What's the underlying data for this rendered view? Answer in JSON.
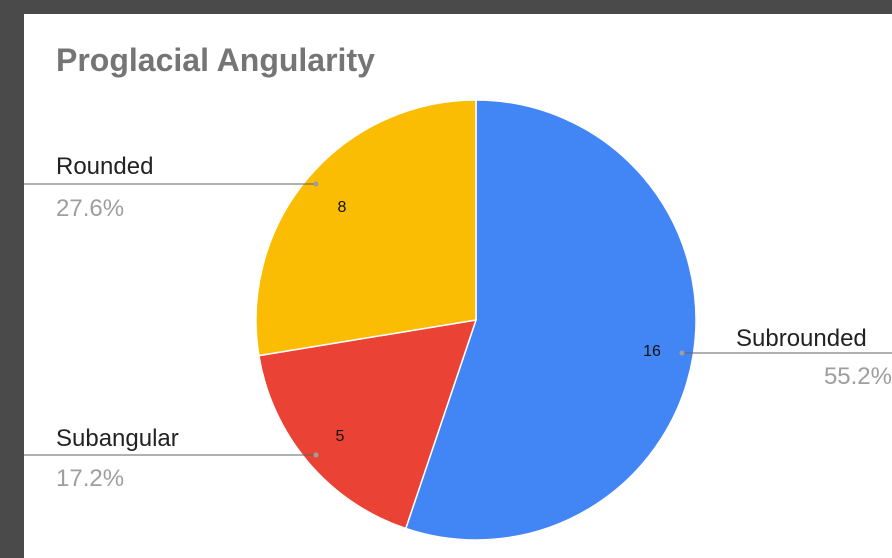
{
  "chart_data": {
    "type": "pie",
    "title": "Proglacial Angularity",
    "slices": [
      {
        "name": "Subrounded",
        "value": 16,
        "percent": "55.2%",
        "color": "#4285f4"
      },
      {
        "name": "Subangular",
        "value": 5,
        "percent": "17.2%",
        "color": "#ea4335"
      },
      {
        "name": "Rounded",
        "value": 8,
        "percent": "27.6%",
        "color": "#fbbc04"
      }
    ],
    "legend": "none"
  }
}
